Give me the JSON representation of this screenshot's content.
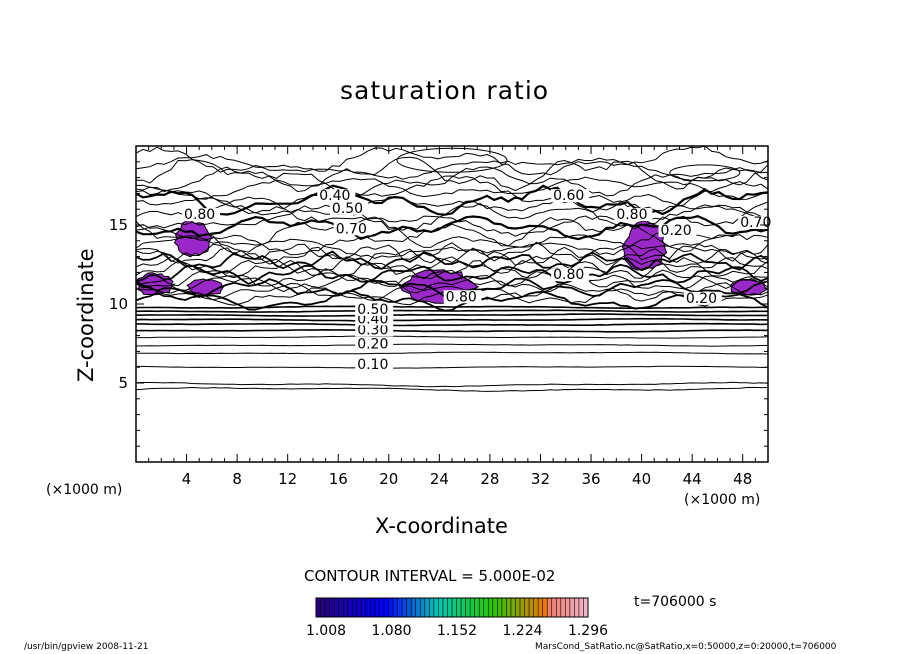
{
  "chart_data": {
    "type": "contour",
    "title": "saturation ratio",
    "xlabel": "X-coordinate",
    "ylabel": "Z-coordinate",
    "x_unit": "(×1000 m)",
    "y_unit": "(×1000 m)",
    "xlim": [
      0,
      50
    ],
    "ylim": [
      0,
      20
    ],
    "x_ticks": [
      4,
      8,
      12,
      16,
      20,
      24,
      28,
      32,
      36,
      40,
      44,
      48
    ],
    "y_ticks": [
      5,
      10,
      15
    ],
    "contour_interval_text": "CONTOUR INTERVAL = 5.000E-02",
    "time_text": "t=706000 s",
    "contour_labels": [
      {
        "text": "0.10",
        "x": 17.5,
        "z": 6.0
      },
      {
        "text": "0.20",
        "x": 17.5,
        "z": 7.3
      },
      {
        "text": "0.30",
        "x": 17.5,
        "z": 8.2
      },
      {
        "text": "0.40",
        "x": 17.5,
        "z": 8.9
      },
      {
        "text": "0.50",
        "x": 17.5,
        "z": 9.5
      },
      {
        "text": "0.40",
        "x": 14.5,
        "z": 16.7
      },
      {
        "text": "0.50",
        "x": 15.5,
        "z": 15.9
      },
      {
        "text": "0.60",
        "x": 33.0,
        "z": 16.7
      },
      {
        "text": "0.70",
        "x": 47.8,
        "z": 15.0
      },
      {
        "text": "0.80",
        "x": 3.8,
        "z": 15.5
      },
      {
        "text": "0.80",
        "x": 38.0,
        "z": 15.5
      },
      {
        "text": "0.70",
        "x": 15.8,
        "z": 14.6
      },
      {
        "text": "0.20",
        "x": 41.5,
        "z": 14.5
      },
      {
        "text": "0.80",
        "x": 33.0,
        "z": 11.7
      },
      {
        "text": "0.80",
        "x": 24.5,
        "z": 10.3
      },
      {
        "text": "0.20",
        "x": 43.5,
        "z": 10.2
      }
    ],
    "supersaturated_regions": [
      {
        "x": [
          3,
          6
        ],
        "z": [
          13,
          15.3
        ]
      },
      {
        "x": [
          0,
          3
        ],
        "z": [
          10.5,
          12.0
        ]
      },
      {
        "x": [
          4,
          7
        ],
        "z": [
          10.5,
          11.6
        ]
      },
      {
        "x": [
          21,
          27
        ],
        "z": [
          10.0,
          12.2
        ]
      },
      {
        "x": [
          38.5,
          42
        ],
        "z": [
          12.0,
          15.3
        ]
      },
      {
        "x": [
          47,
          50
        ],
        "z": [
          10.5,
          11.6
        ]
      }
    ],
    "colorbar": {
      "tick_labels": [
        "1.008",
        "1.080",
        "1.152",
        "1.224",
        "1.296"
      ],
      "range": [
        1.008,
        1.296
      ]
    },
    "colors": {
      "supersaturation_fill": "#9a28c8",
      "contour": "#000000"
    }
  },
  "footer": {
    "left": "/usr/bin/gpview   2008-11-21",
    "right": "MarsCond_SatRatio.nc@SatRatio,x=0:50000,z=0:20000,t=706000"
  }
}
